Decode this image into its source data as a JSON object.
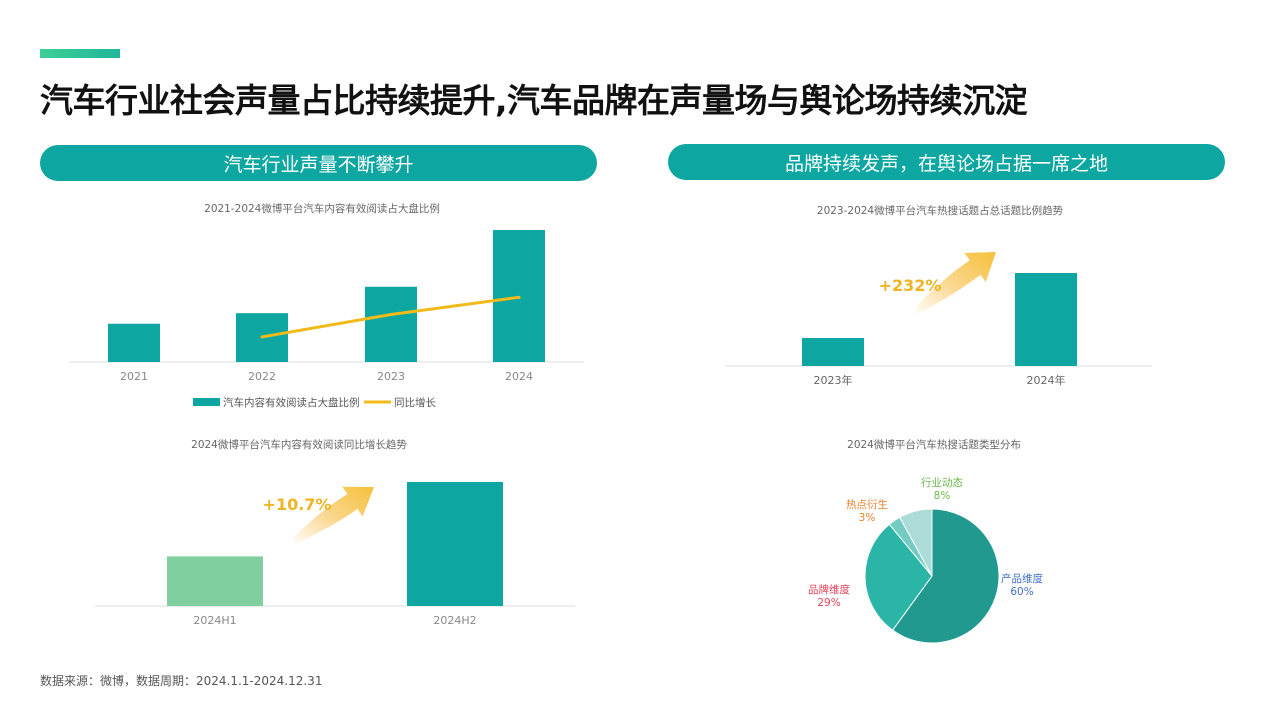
{
  "page": {
    "title": "汽车行业社会声量占比持续提升,汽车品牌在声量场与舆论场持续沉淀",
    "left_heading": "汽车行业声量不断攀升",
    "right_heading": "品牌持续发声，在舆论场占据一席之地",
    "source": "数据来源：微博，数据周期：2024.1.1-2024.12.31",
    "accent_color": "#2fc39a",
    "brand_teal": "#0ea6a0"
  },
  "chart_data": [
    {
      "id": "c1",
      "type": "bar",
      "title": "2021-2024微博平台汽车内容有效阅读占大盘比例",
      "categories": [
        "2021",
        "2022",
        "2023",
        "2024"
      ],
      "series": [
        {
          "name": "汽车内容有效阅读占大盘比例",
          "type": "bar",
          "values": [
            0.29,
            0.37,
            0.57,
            1.0
          ],
          "color": "#0ea6a0"
        },
        {
          "name": "同比增长",
          "type": "line",
          "values": [
            null,
            0.19,
            0.36,
            0.49
          ],
          "color": "#f0bb1a"
        }
      ],
      "ylim": [
        0,
        1
      ],
      "legend": "bottom",
      "grid": false
    },
    {
      "id": "c2",
      "type": "bar",
      "title": "2023-2024微博平台汽车热搜话题占总话题比例趋势",
      "categories": [
        "2023年",
        "2024年"
      ],
      "values": [
        1.0,
        3.32
      ],
      "ylim": [
        0,
        3.32
      ],
      "annotation": "+232%",
      "color": "#0ea6a0"
    },
    {
      "id": "c3",
      "type": "bar",
      "title": "2024微博平台汽车内容有效阅读同比增长趋势",
      "categories": [
        "2024H1",
        "2024H2"
      ],
      "values": [
        0.4,
        1.0
      ],
      "ylim": [
        0,
        1
      ],
      "annotation": "+10.7%",
      "colors": [
        "#7fcf9f",
        "#0ea6a0"
      ]
    },
    {
      "id": "c4",
      "type": "pie",
      "title": "2024微博平台汽车热搜话题类型分布",
      "slices": [
        {
          "label": "产品维度",
          "value": 60,
          "display": "60%",
          "color": "#22998f",
          "label_color": "#3f6fc4"
        },
        {
          "label": "品牌维度",
          "value": 29,
          "display": "29%",
          "color": "#2bb5a7",
          "label_color": "#e0435a"
        },
        {
          "label": "热点衍生",
          "value": 3,
          "display": "3%",
          "color": "#74cbc3",
          "label_color": "#e8812d"
        },
        {
          "label": "行业动态",
          "value": 8,
          "display": "8%",
          "color": "#abdcd8",
          "label_color": "#6ab84a"
        }
      ]
    }
  ]
}
